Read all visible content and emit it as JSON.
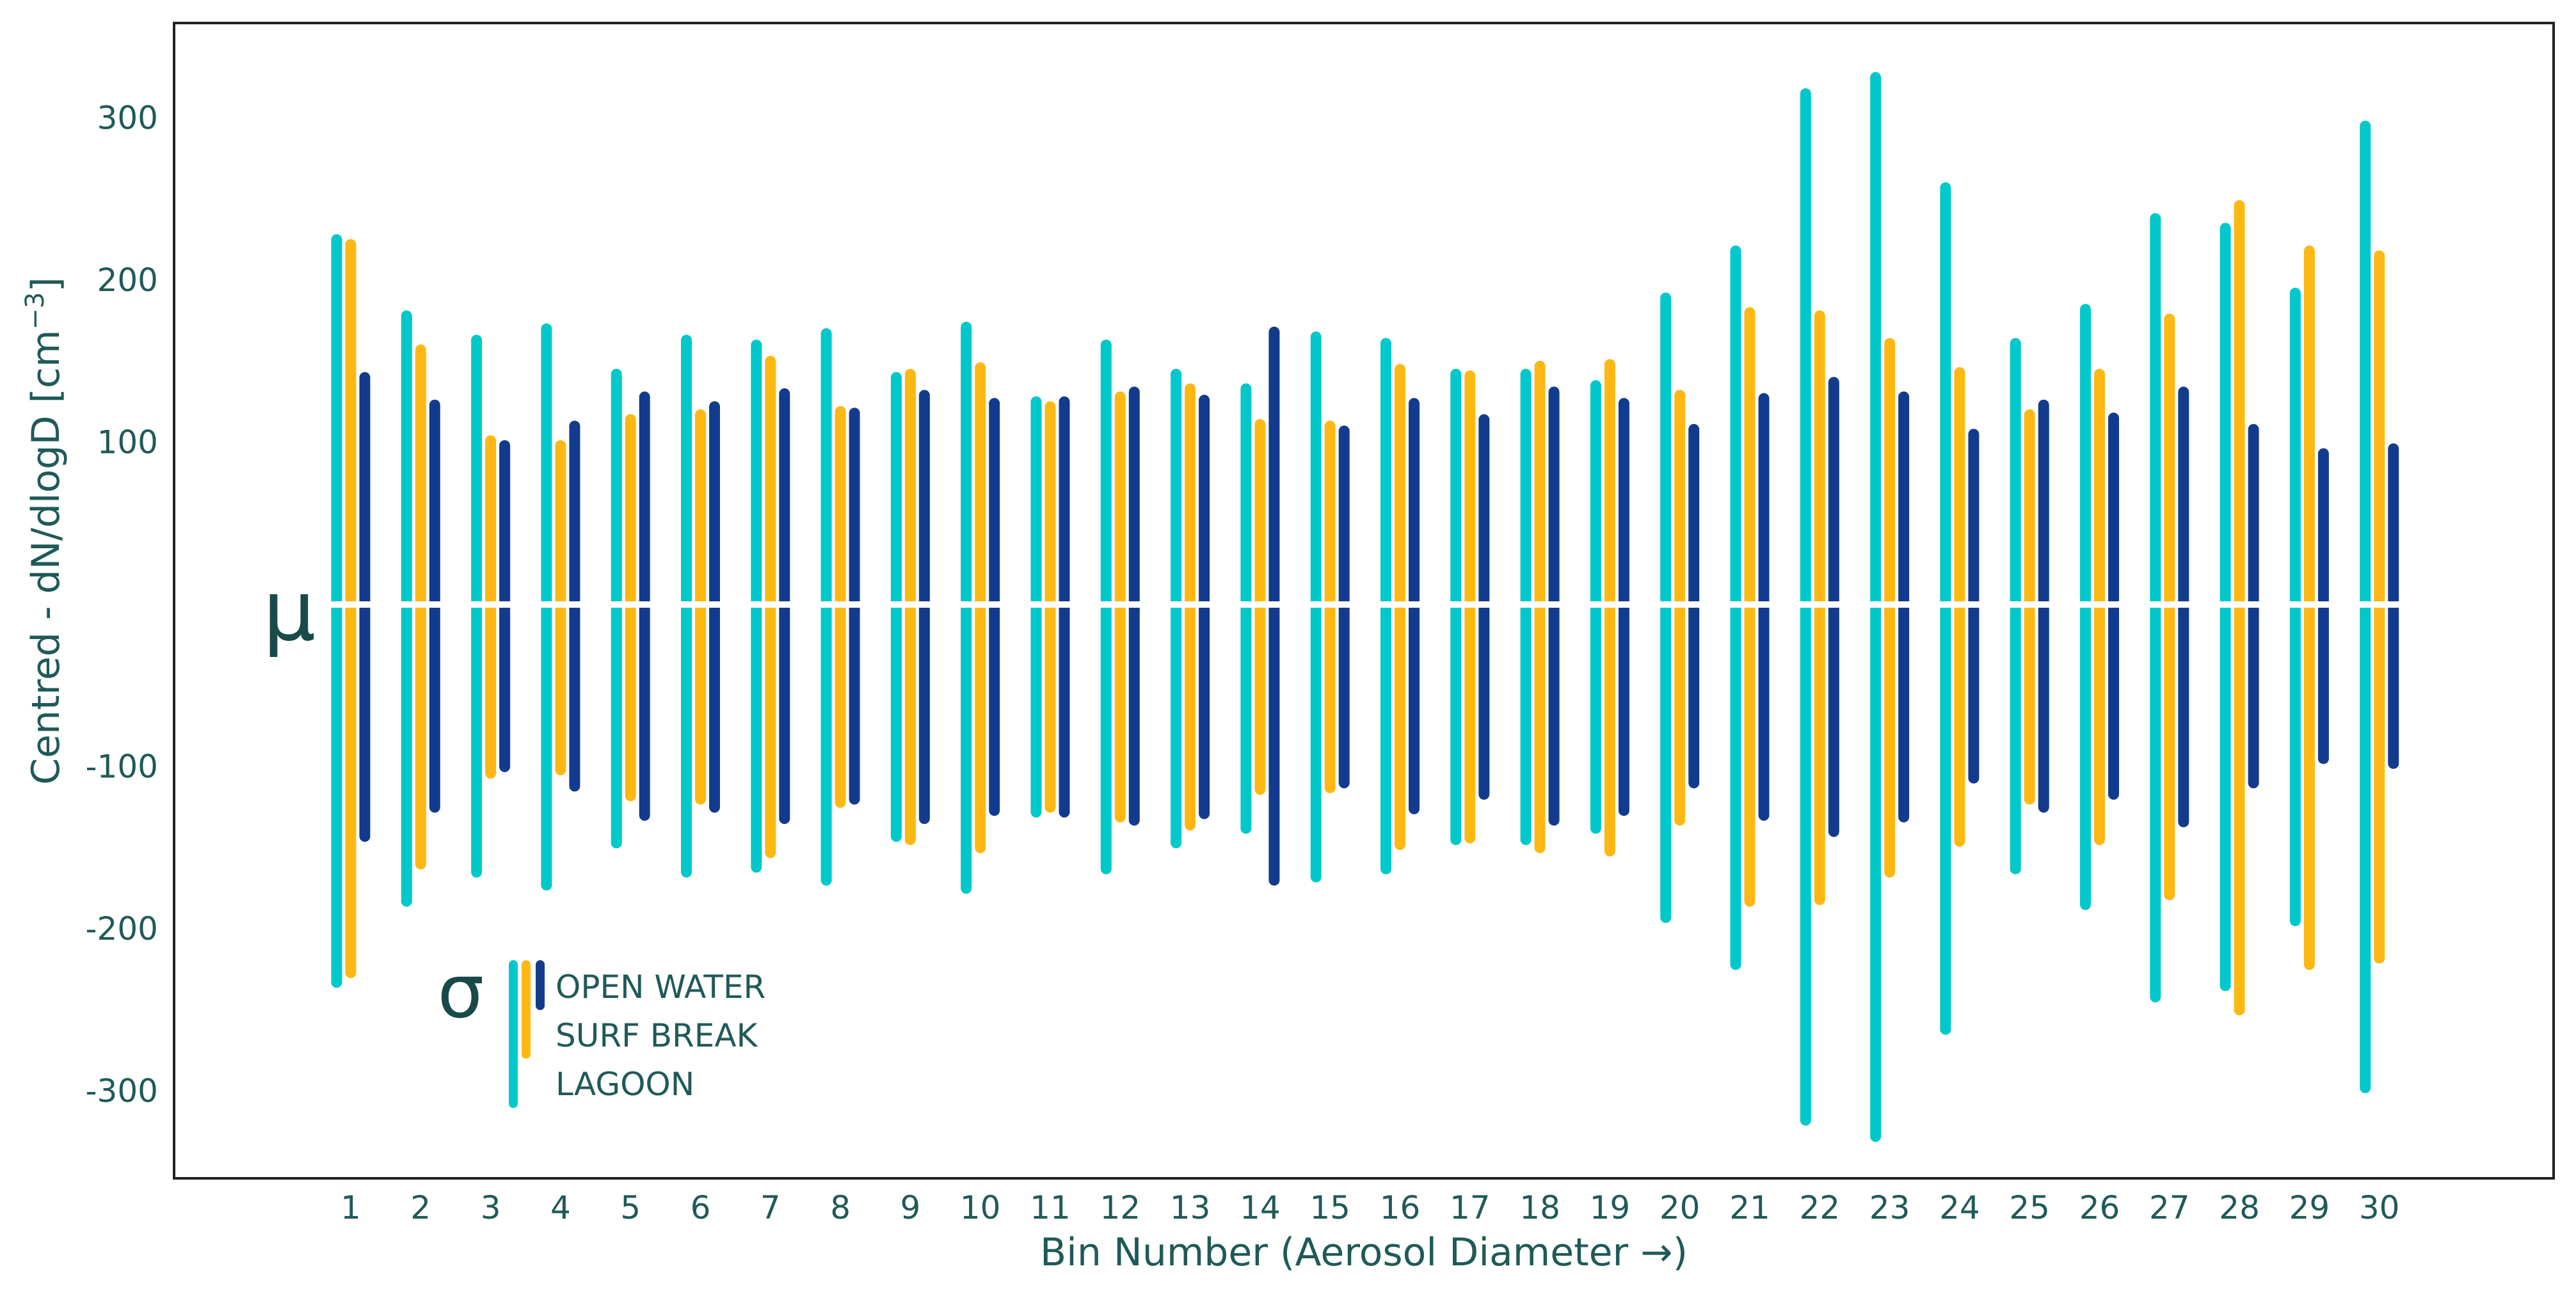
{
  "chart_data": {
    "type": "bar",
    "subtype": "range-bars centred on mean",
    "xlabel": "Bin Number (Aerosol Diameter →)",
    "ylabel": "Centred - dN/dlogD [cm",
    "ylabel_superscript": "−3",
    "ylabel_close": "]",
    "ylim": [
      -360,
      350
    ],
    "yticks": [
      300,
      200,
      100,
      -100,
      -200,
      -300
    ],
    "ytick_labels": [
      "300",
      "200",
      "100",
      "-100",
      "-200",
      "-300"
    ],
    "mean_symbol": "μ",
    "sigma_symbol": "σ",
    "legend_position": "bottom-left",
    "categories": [
      "1",
      "2",
      "3",
      "4",
      "5",
      "6",
      "7",
      "8",
      "9",
      "10",
      "11",
      "12",
      "13",
      "14",
      "15",
      "16",
      "17",
      "18",
      "19",
      "20",
      "21",
      "22",
      "23",
      "24",
      "25",
      "26",
      "27",
      "28",
      "29",
      "30"
    ],
    "series": [
      {
        "name": "LAGOON",
        "color": "#00c8cb",
        "upper": [
          225,
          178,
          163,
          170,
          142,
          163,
          160,
          167,
          140,
          171,
          125,
          160,
          142,
          133,
          165,
          161,
          142,
          142,
          135,
          189,
          218,
          315,
          325,
          257,
          161,
          182,
          238,
          232,
          192,
          295
        ],
        "lower": [
          -233,
          -183,
          -165,
          -173,
          -147,
          -165,
          -162,
          -170,
          -143,
          -175,
          -128,
          -163,
          -147,
          -138,
          -168,
          -163,
          -145,
          -145,
          -138,
          -193,
          -222,
          -318,
          -328,
          -262,
          -163,
          -185,
          -242,
          -235,
          -195,
          -298
        ]
      },
      {
        "name": "SURF BREAK",
        "color": "#fdb813",
        "upper": [
          222,
          157,
          101,
          98,
          114,
          117,
          150,
          119,
          142,
          146,
          122,
          128,
          133,
          111,
          110,
          145,
          141,
          147,
          148,
          129,
          180,
          178,
          161,
          143,
          117,
          142,
          176,
          246,
          218,
          215
        ],
        "lower": [
          -227,
          -160,
          -104,
          -102,
          -118,
          -120,
          -153,
          -122,
          -145,
          -150,
          -125,
          -131,
          -136,
          -114,
          -113,
          -148,
          -144,
          -150,
          -152,
          -133,
          -183,
          -182,
          -165,
          -146,
          -120,
          -145,
          -179,
          -250,
          -222,
          -218
        ]
      },
      {
        "name": "OPEN WATER",
        "color": "#133b8d",
        "upper": [
          140,
          123,
          98,
          110,
          128,
          122,
          130,
          118,
          129,
          124,
          125,
          131,
          126,
          168,
          107,
          124,
          114,
          131,
          124,
          108,
          127,
          137,
          128,
          105,
          123,
          115,
          131,
          108,
          93,
          96
        ],
        "lower": [
          -143,
          -125,
          -100,
          -112,
          -130,
          -125,
          -132,
          -120,
          -132,
          -127,
          -128,
          -133,
          -129,
          -170,
          -110,
          -126,
          -117,
          -133,
          -127,
          -110,
          -130,
          -140,
          -131,
          -107,
          -125,
          -117,
          -134,
          -110,
          -95,
          -98
        ]
      }
    ],
    "legend_order": [
      "OPEN WATER",
      "SURF BREAK",
      "LAGOON"
    ]
  }
}
